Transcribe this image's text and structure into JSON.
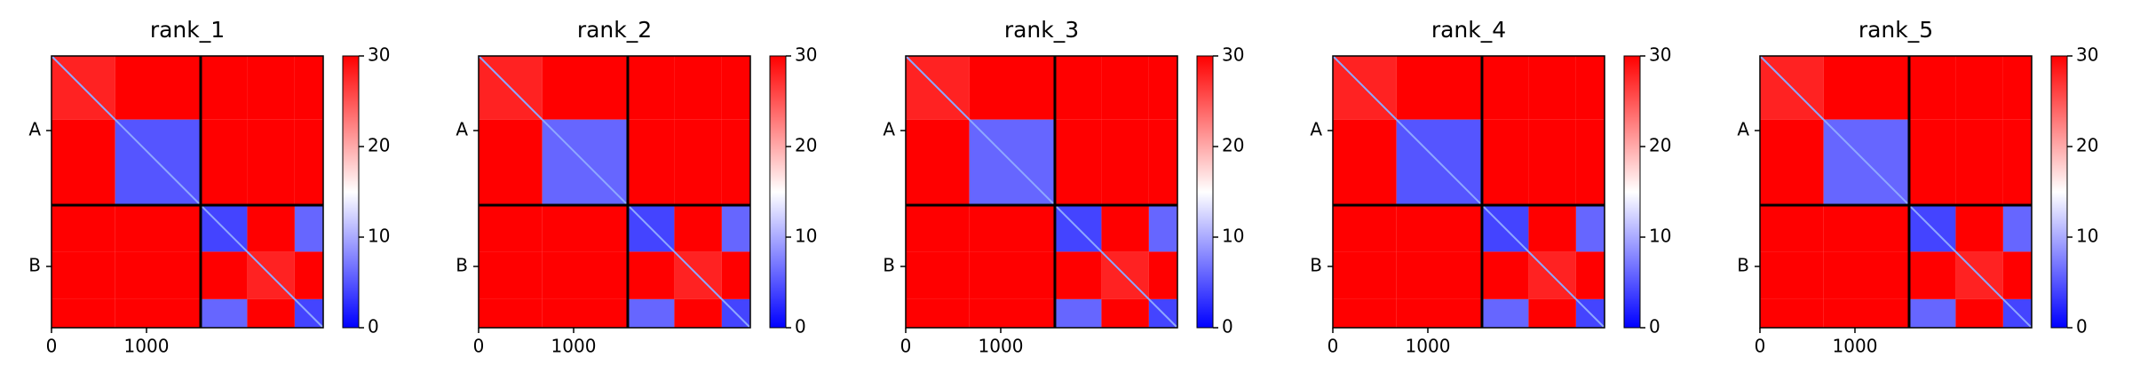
{
  "chart_data": [
    {
      "type": "heatmap",
      "title": "rank_1",
      "edges": [
        0,
        670,
        1570,
        2060,
        2560,
        2860
      ],
      "matrix": [
        [
          28,
          30,
          30,
          30,
          30
        ],
        [
          30,
          5,
          30,
          30,
          30
        ],
        [
          30,
          30,
          4,
          30,
          6
        ],
        [
          30,
          30,
          30,
          28,
          30
        ],
        [
          30,
          30,
          6,
          30,
          4
        ]
      ],
      "xlim": [
        0,
        2860
      ],
      "ylim": [
        2860,
        0
      ],
      "xticks": [
        0,
        1000
      ],
      "yticks": [
        {
          "value": 785,
          "label": "A"
        },
        {
          "value": 2215,
          "label": "B"
        }
      ],
      "chain_breaks": [
        1570
      ],
      "colormap": "bwr",
      "clim": [
        0,
        30
      ],
      "cticks": [
        0,
        10,
        20,
        30
      ]
    },
    {
      "type": "heatmap",
      "title": "rank_2",
      "edges": [
        0,
        670,
        1570,
        2060,
        2560,
        2860
      ],
      "matrix": [
        [
          28,
          30,
          30,
          30,
          30
        ],
        [
          30,
          6,
          30,
          30,
          30
        ],
        [
          30,
          30,
          4,
          30,
          6
        ],
        [
          30,
          30,
          30,
          28,
          30
        ],
        [
          30,
          30,
          6,
          30,
          4
        ]
      ],
      "xlim": [
        0,
        2860
      ],
      "ylim": [
        2860,
        0
      ],
      "xticks": [
        0,
        1000
      ],
      "yticks": [
        {
          "value": 785,
          "label": "A"
        },
        {
          "value": 2215,
          "label": "B"
        }
      ],
      "chain_breaks": [
        1570
      ],
      "colormap": "bwr",
      "clim": [
        0,
        30
      ],
      "cticks": [
        0,
        10,
        20,
        30
      ]
    },
    {
      "type": "heatmap",
      "title": "rank_3",
      "edges": [
        0,
        670,
        1570,
        2060,
        2560,
        2860
      ],
      "matrix": [
        [
          28,
          30,
          30,
          30,
          30
        ],
        [
          30,
          6,
          30,
          30,
          30
        ],
        [
          30,
          30,
          4,
          30,
          6
        ],
        [
          30,
          30,
          30,
          28,
          30
        ],
        [
          30,
          30,
          6,
          30,
          4
        ]
      ],
      "xlim": [
        0,
        2860
      ],
      "ylim": [
        2860,
        0
      ],
      "xticks": [
        0,
        1000
      ],
      "yticks": [
        {
          "value": 785,
          "label": "A"
        },
        {
          "value": 2215,
          "label": "B"
        }
      ],
      "chain_breaks": [
        1570
      ],
      "colormap": "bwr",
      "clim": [
        0,
        30
      ],
      "cticks": [
        0,
        10,
        20,
        30
      ]
    },
    {
      "type": "heatmap",
      "title": "rank_4",
      "edges": [
        0,
        670,
        1570,
        2060,
        2560,
        2860
      ],
      "matrix": [
        [
          28,
          30,
          30,
          30,
          30
        ],
        [
          30,
          5,
          30,
          30,
          30
        ],
        [
          30,
          30,
          4,
          30,
          6
        ],
        [
          30,
          30,
          30,
          28,
          30
        ],
        [
          30,
          30,
          6,
          30,
          4
        ]
      ],
      "xlim": [
        0,
        2860
      ],
      "ylim": [
        2860,
        0
      ],
      "xticks": [
        0,
        1000
      ],
      "yticks": [
        {
          "value": 785,
          "label": "A"
        },
        {
          "value": 2215,
          "label": "B"
        }
      ],
      "chain_breaks": [
        1570
      ],
      "colormap": "bwr",
      "clim": [
        0,
        30
      ],
      "cticks": [
        0,
        10,
        20,
        30
      ]
    },
    {
      "type": "heatmap",
      "title": "rank_5",
      "edges": [
        0,
        670,
        1570,
        2060,
        2560,
        2860
      ],
      "matrix": [
        [
          28,
          30,
          30,
          30,
          30
        ],
        [
          30,
          6,
          30,
          30,
          30
        ],
        [
          30,
          30,
          4,
          30,
          6
        ],
        [
          30,
          30,
          30,
          28,
          30
        ],
        [
          30,
          30,
          6,
          30,
          4
        ]
      ],
      "xlim": [
        0,
        2860
      ],
      "ylim": [
        2860,
        0
      ],
      "xticks": [
        0,
        1000
      ],
      "yticks": [
        {
          "value": 785,
          "label": "A"
        },
        {
          "value": 2215,
          "label": "B"
        }
      ],
      "chain_breaks": [
        1570
      ],
      "colormap": "bwr",
      "clim": [
        0,
        30
      ],
      "cticks": [
        0,
        10,
        20,
        30
      ]
    }
  ]
}
